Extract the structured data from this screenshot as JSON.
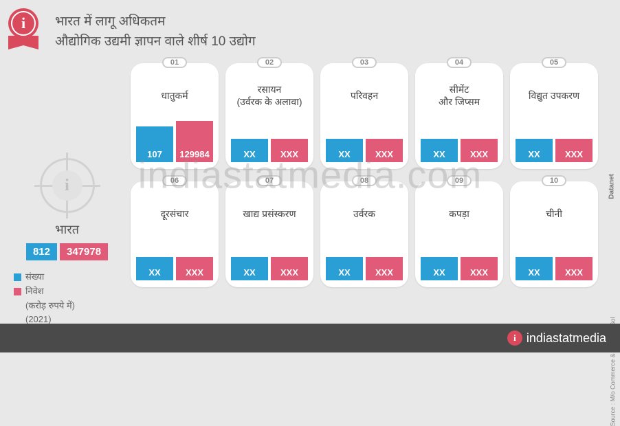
{
  "title_line1": "भारत में लागू अधिकतम",
  "title_line2": "औद्योगिक उद्यमी ज्ञापन वाले शीर्ष 10 उद्योग",
  "india": {
    "label": "भारत",
    "count": "812",
    "investment": "347978"
  },
  "legend": {
    "count": "संख्या",
    "investment": "निवेश",
    "unit": "(करोड़ रुपये में)",
    "year": "(2021)"
  },
  "colors": {
    "blue": "#2a9fd6",
    "pink": "#e15a78",
    "badge": "#d94a5d",
    "bg": "#e8e8e8",
    "footer": "#4a4a4a",
    "text": "#555"
  },
  "cards": [
    {
      "rank": "01",
      "title": "धातुकर्म",
      "count": "107",
      "investment": "129984",
      "bh": 52,
      "ph": 60
    },
    {
      "rank": "02",
      "title": "रसायन\n(उर्वरक के अलावा)",
      "count": "XX",
      "investment": "XXX",
      "bh": 34,
      "ph": 34
    },
    {
      "rank": "03",
      "title": "परिवहन",
      "count": "XX",
      "investment": "XXX",
      "bh": 34,
      "ph": 34
    },
    {
      "rank": "04",
      "title": "सीमेंट\nऔर जिप्सम",
      "count": "XX",
      "investment": "XXX",
      "bh": 34,
      "ph": 34
    },
    {
      "rank": "05",
      "title": "विद्युत उपकरण",
      "count": "XX",
      "investment": "XXX",
      "bh": 34,
      "ph": 34
    },
    {
      "rank": "06",
      "title": "दूरसंचार",
      "count": "XX",
      "investment": "XXX",
      "bh": 34,
      "ph": 34
    },
    {
      "rank": "07",
      "title": "खाद्य प्रसंस्करण",
      "count": "XX",
      "investment": "XXX",
      "bh": 34,
      "ph": 34
    },
    {
      "rank": "08",
      "title": "उर्वरक",
      "count": "XX",
      "investment": "XXX",
      "bh": 34,
      "ph": 34
    },
    {
      "rank": "09",
      "title": "कपड़ा",
      "count": "XX",
      "investment": "XXX",
      "bh": 34,
      "ph": 34
    },
    {
      "rank": "10",
      "title": "चीनी",
      "count": "XX",
      "investment": "XXX",
      "bh": 34,
      "ph": 34
    }
  ],
  "footer_brand": "indiastatmedia",
  "source": "Source : M/o Commerce & Industry, GoI",
  "datanet": "Datanet",
  "watermark": "indiastatmedia.com"
}
